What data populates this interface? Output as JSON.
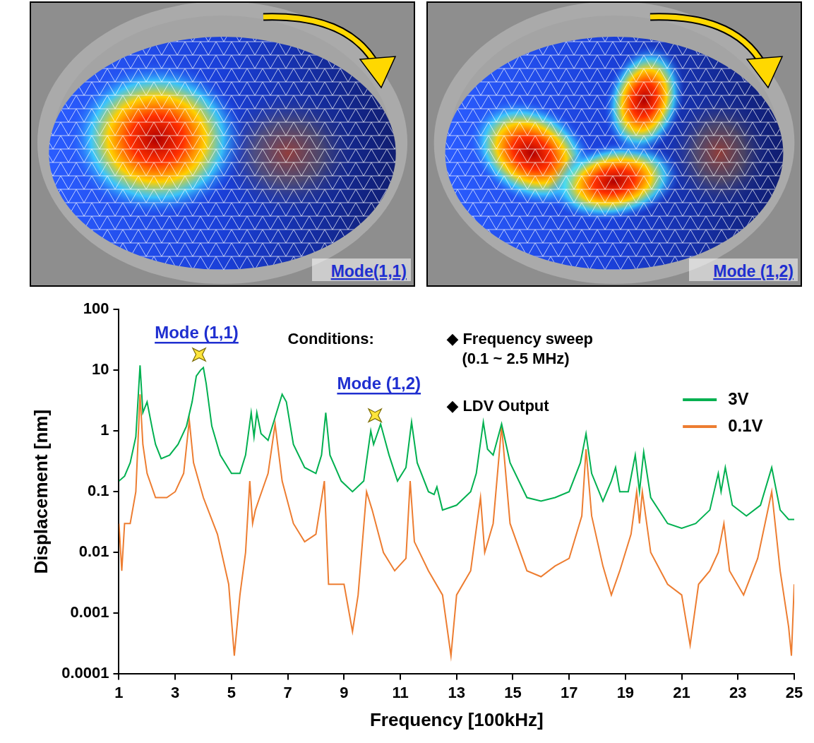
{
  "panels": [
    {
      "label": "Mode(1,1)"
    },
    {
      "label": "Mode (1,2)"
    }
  ],
  "chart_data": {
    "type": "line",
    "x_label": "Frequency [100kHz]",
    "y_label": "Displacement [nm]",
    "log": "y",
    "grid": false,
    "legend": "upper right",
    "xlim": [
      1,
      25
    ],
    "xticks": [
      1,
      3,
      5,
      7,
      9,
      11,
      13,
      15,
      17,
      19,
      21,
      23,
      25
    ],
    "ylim": [
      0.0001,
      100
    ],
    "yticks": [
      0.0001,
      0.001,
      0.01,
      0.1,
      1,
      10,
      100
    ],
    "annotations": [
      "Mode (1,1)",
      "Mode (1,2)"
    ],
    "highlights": [
      {
        "x": 3.85,
        "y": 18,
        "marker": "star"
      },
      {
        "x": 10.1,
        "y": 1.8,
        "marker": "star"
      }
    ],
    "conditions": {
      "heading": "Conditions:",
      "items": [
        [
          "◆ Frequency sweep",
          "(0.1 ~ 2.5 MHz)"
        ],
        [
          "◆ LDV Output"
        ]
      ]
    },
    "series": [
      {
        "name": "3V",
        "color": "#00b050",
        "x": [
          1,
          1.2,
          1.4,
          1.6,
          1.75,
          1.85,
          2.0,
          2.2,
          2.3,
          2.5,
          2.8,
          3.1,
          3.4,
          3.6,
          3.75,
          3.9,
          4.0,
          4.1,
          4.3,
          4.6,
          5.0,
          5.3,
          5.5,
          5.7,
          5.8,
          5.9,
          6.05,
          6.3,
          6.6,
          6.8,
          6.95,
          7.2,
          7.6,
          8.0,
          8.2,
          8.35,
          8.5,
          8.9,
          9.3,
          9.7,
          9.95,
          10.05,
          10.3,
          10.6,
          10.9,
          11.2,
          11.4,
          11.6,
          12.0,
          12.2,
          12.3,
          12.5,
          13.0,
          13.5,
          13.7,
          13.95,
          14.1,
          14.3,
          14.6,
          14.9,
          15.5,
          16.0,
          16.5,
          17.0,
          17.4,
          17.6,
          17.8,
          18.2,
          18.5,
          18.65,
          18.8,
          19.1,
          19.35,
          19.5,
          19.65,
          19.9,
          20.5,
          21.0,
          21.5,
          22.0,
          22.3,
          22.4,
          22.55,
          22.8,
          23.3,
          23.8,
          24.2,
          24.5,
          24.8,
          25
        ],
        "values": [
          0.15,
          0.18,
          0.3,
          0.8,
          12,
          2,
          3,
          1.0,
          0.6,
          0.35,
          0.4,
          0.6,
          1.2,
          3,
          8,
          10,
          11,
          6,
          1.2,
          0.4,
          0.2,
          0.2,
          0.4,
          2,
          0.8,
          2,
          0.9,
          0.7,
          2,
          4,
          3,
          0.6,
          0.25,
          0.2,
          0.4,
          2,
          0.4,
          0.15,
          0.1,
          0.15,
          1.0,
          0.6,
          1.3,
          0.4,
          0.15,
          0.25,
          1.4,
          0.3,
          0.1,
          0.09,
          0.12,
          0.05,
          0.06,
          0.1,
          0.2,
          1.4,
          0.5,
          0.4,
          1.3,
          0.3,
          0.08,
          0.07,
          0.08,
          0.1,
          0.3,
          0.9,
          0.2,
          0.07,
          0.15,
          0.25,
          0.1,
          0.1,
          0.4,
          0.1,
          0.45,
          0.08,
          0.03,
          0.025,
          0.03,
          0.05,
          0.2,
          0.1,
          0.25,
          0.06,
          0.04,
          0.06,
          0.25,
          0.05,
          0.035,
          0.035
        ]
      },
      {
        "name": "0.1V",
        "color": "#ed7d31",
        "x": [
          1,
          1.1,
          1.2,
          1.4,
          1.6,
          1.75,
          1.85,
          2.0,
          2.3,
          2.7,
          3.0,
          3.3,
          3.5,
          3.65,
          4.0,
          4.5,
          4.9,
          5.1,
          5.3,
          5.5,
          5.65,
          5.75,
          5.85,
          6.0,
          6.3,
          6.55,
          6.8,
          7.2,
          7.6,
          8.0,
          8.3,
          8.45,
          8.7,
          9.0,
          9.3,
          9.5,
          9.8,
          10.0,
          10.4,
          10.8,
          11.2,
          11.35,
          11.5,
          12.0,
          12.5,
          12.8,
          13.0,
          13.5,
          13.85,
          14.0,
          14.3,
          14.6,
          14.9,
          15.5,
          16.0,
          16.5,
          17.0,
          17.45,
          17.6,
          17.8,
          18.2,
          18.5,
          18.8,
          19.2,
          19.4,
          19.5,
          19.6,
          19.9,
          20.5,
          21.0,
          21.3,
          21.6,
          22.0,
          22.3,
          22.5,
          22.7,
          23.2,
          23.7,
          24.2,
          24.5,
          24.8,
          24.9,
          25
        ],
        "values": [
          0.03,
          0.005,
          0.03,
          0.03,
          0.1,
          4,
          0.6,
          0.2,
          0.08,
          0.08,
          0.1,
          0.2,
          1.5,
          0.3,
          0.08,
          0.02,
          0.003,
          0.0002,
          0.002,
          0.01,
          0.15,
          0.03,
          0.05,
          0.08,
          0.2,
          1.3,
          0.15,
          0.03,
          0.015,
          0.02,
          0.15,
          0.003,
          0.003,
          0.003,
          0.0005,
          0.002,
          0.1,
          0.05,
          0.01,
          0.005,
          0.008,
          0.15,
          0.015,
          0.005,
          0.002,
          0.0002,
          0.002,
          0.005,
          0.08,
          0.01,
          0.03,
          1.2,
          0.03,
          0.005,
          0.004,
          0.006,
          0.008,
          0.04,
          0.5,
          0.04,
          0.006,
          0.002,
          0.005,
          0.02,
          0.1,
          0.03,
          0.1,
          0.01,
          0.003,
          0.002,
          0.0003,
          0.003,
          0.005,
          0.01,
          0.03,
          0.005,
          0.002,
          0.008,
          0.1,
          0.005,
          0.0006,
          0.0002,
          0.003
        ]
      }
    ]
  }
}
